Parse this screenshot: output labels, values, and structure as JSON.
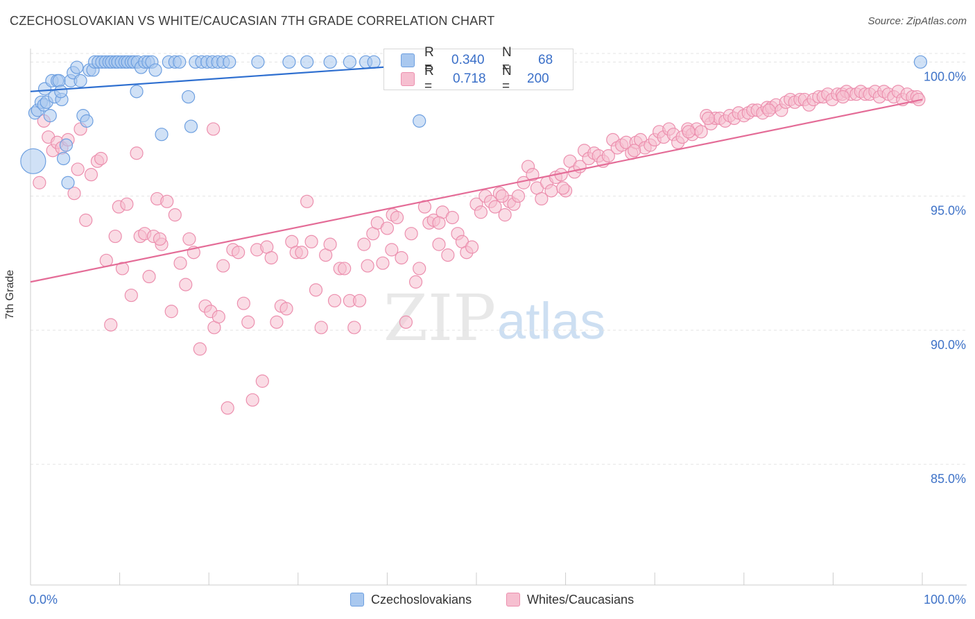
{
  "title": "CZECHOSLOVAKIAN VS WHITE/CAUCASIAN 7TH GRADE CORRELATION CHART",
  "source": "Source: ZipAtlas.com",
  "watermark": {
    "zip": "ZIP",
    "atlas": "atlas"
  },
  "colors": {
    "blue_fill": "#a9c8ef",
    "blue_stroke": "#6d9fe0",
    "blue_line": "#2e6fd0",
    "pink_fill": "#f6bfd0",
    "pink_stroke": "#ec8fae",
    "pink_line": "#e46c97",
    "tick_label": "#3f73c8",
    "grid": "#e3e3e3"
  },
  "stats": {
    "rows": [
      {
        "r_label": "R =",
        "r_value": "0.340",
        "n_label": "N =",
        "n_value": "68"
      },
      {
        "r_label": "R =",
        "r_value": "0.718",
        "n_label": "N =",
        "n_value": "200"
      }
    ]
  },
  "legend": [
    {
      "label": "Czechoslovakians"
    },
    {
      "label": "Whites/Caucasians"
    }
  ],
  "chart_data": {
    "type": "scatter",
    "title": "CZECHOSLOVAKIAN VS WHITE/CAUCASIAN 7TH GRADE CORRELATION CHART",
    "xlabel": "",
    "ylabel": "7th Grade",
    "xlim": [
      0,
      100
    ],
    "ylim": [
      80.5,
      100.5
    ],
    "x_tick_labels": [
      "0.0%",
      "100.0%"
    ],
    "y_ticks": [
      85,
      90,
      95,
      100
    ],
    "y_tick_labels": [
      "85.0%",
      "90.0%",
      "95.0%",
      "100.0%"
    ],
    "grid": true,
    "legend_position": "bottom",
    "series": [
      {
        "name": "Czechoslovakians",
        "color": "#a9c8ef",
        "trend": {
          "x": [
            0,
            48
          ],
          "y": [
            98.9,
            100.0
          ]
        },
        "points": [
          [
            0.3,
            96.3
          ],
          [
            0.5,
            98.1
          ],
          [
            0.8,
            98.2
          ],
          [
            1.2,
            98.5
          ],
          [
            1.5,
            98.4
          ],
          [
            1.6,
            99.0
          ],
          [
            1.8,
            98.5
          ],
          [
            2.2,
            98.0
          ],
          [
            2.4,
            99.3
          ],
          [
            2.7,
            98.7
          ],
          [
            3.0,
            99.3
          ],
          [
            3.2,
            99.3
          ],
          [
            3.5,
            98.6
          ],
          [
            3.7,
            96.4
          ],
          [
            4.0,
            96.9
          ],
          [
            4.5,
            99.3
          ],
          [
            4.8,
            99.6
          ],
          [
            5.2,
            99.8
          ],
          [
            5.6,
            99.3
          ],
          [
            5.9,
            98.0
          ],
          [
            6.3,
            97.8
          ],
          [
            6.6,
            99.7
          ],
          [
            7.0,
            99.7
          ],
          [
            7.2,
            100.0
          ],
          [
            7.6,
            100.0
          ],
          [
            8.0,
            100.0
          ],
          [
            8.4,
            100.0
          ],
          [
            8.8,
            100.0
          ],
          [
            9.1,
            100.0
          ],
          [
            9.5,
            100.0
          ],
          [
            9.8,
            100.0
          ],
          [
            10.2,
            100.0
          ],
          [
            10.6,
            100.0
          ],
          [
            10.9,
            100.0
          ],
          [
            11.3,
            100.0
          ],
          [
            11.6,
            100.0
          ],
          [
            12.0,
            100.0
          ],
          [
            12.4,
            99.8
          ],
          [
            12.8,
            100.0
          ],
          [
            13.2,
            100.0
          ],
          [
            13.6,
            100.0
          ],
          [
            14.0,
            99.7
          ],
          [
            14.7,
            97.3
          ],
          [
            15.5,
            100.0
          ],
          [
            16.2,
            100.0
          ],
          [
            16.7,
            100.0
          ],
          [
            17.7,
            98.7
          ],
          [
            18.0,
            97.6
          ],
          [
            18.5,
            100.0
          ],
          [
            19.2,
            100.0
          ],
          [
            19.8,
            100.0
          ],
          [
            20.4,
            100.0
          ],
          [
            21.0,
            100.0
          ],
          [
            21.6,
            100.0
          ],
          [
            22.3,
            100.0
          ],
          [
            25.5,
            100.0
          ],
          [
            29.0,
            100.0
          ],
          [
            31.0,
            100.0
          ],
          [
            33.6,
            100.0
          ],
          [
            35.8,
            100.0
          ],
          [
            37.6,
            100.0
          ],
          [
            38.5,
            100.0
          ],
          [
            40.5,
            100.0
          ],
          [
            43.6,
            97.8
          ],
          [
            11.9,
            98.9
          ],
          [
            4.2,
            95.5
          ],
          [
            3.4,
            98.9
          ],
          [
            99.8,
            100.0
          ]
        ]
      },
      {
        "name": "Whites/Caucasians",
        "color": "#f6bfd0",
        "trend": {
          "x": [
            0,
            100
          ],
          "y": [
            91.8,
            98.6
          ]
        },
        "points": [
          [
            1.0,
            95.5
          ],
          [
            1.5,
            97.8
          ],
          [
            2.0,
            97.2
          ],
          [
            2.5,
            96.7
          ],
          [
            3.0,
            97.0
          ],
          [
            3.5,
            96.8
          ],
          [
            4.2,
            97.1
          ],
          [
            4.9,
            95.1
          ],
          [
            5.3,
            96.0
          ],
          [
            5.6,
            97.5
          ],
          [
            6.2,
            94.1
          ],
          [
            6.8,
            95.8
          ],
          [
            7.5,
            96.3
          ],
          [
            7.9,
            96.4
          ],
          [
            8.5,
            92.6
          ],
          [
            9.0,
            90.2
          ],
          [
            9.5,
            93.5
          ],
          [
            9.9,
            94.6
          ],
          [
            10.3,
            92.3
          ],
          [
            10.8,
            94.7
          ],
          [
            11.3,
            91.3
          ],
          [
            11.9,
            96.6
          ],
          [
            12.3,
            93.5
          ],
          [
            12.8,
            93.6
          ],
          [
            13.3,
            92.0
          ],
          [
            13.8,
            93.5
          ],
          [
            14.2,
            94.9
          ],
          [
            14.7,
            93.2
          ],
          [
            15.3,
            94.8
          ],
          [
            15.8,
            90.7
          ],
          [
            16.2,
            94.3
          ],
          [
            16.8,
            92.5
          ],
          [
            17.4,
            91.7
          ],
          [
            17.8,
            93.4
          ],
          [
            18.3,
            92.9
          ],
          [
            19.0,
            89.3
          ],
          [
            19.6,
            90.9
          ],
          [
            20.2,
            90.7
          ],
          [
            20.6,
            90.1
          ],
          [
            21.1,
            90.5
          ],
          [
            21.6,
            92.4
          ],
          [
            22.1,
            87.1
          ],
          [
            22.7,
            93.0
          ],
          [
            23.3,
            92.9
          ],
          [
            23.9,
            91.0
          ],
          [
            24.4,
            90.3
          ],
          [
            24.9,
            87.4
          ],
          [
            25.4,
            93.0
          ],
          [
            26.0,
            88.1
          ],
          [
            26.5,
            93.1
          ],
          [
            27.0,
            92.7
          ],
          [
            27.6,
            90.3
          ],
          [
            28.1,
            90.9
          ],
          [
            28.7,
            90.8
          ],
          [
            29.3,
            93.3
          ],
          [
            29.8,
            92.9
          ],
          [
            30.4,
            92.9
          ],
          [
            31.0,
            94.8
          ],
          [
            31.5,
            93.3
          ],
          [
            32.0,
            91.5
          ],
          [
            32.6,
            90.1
          ],
          [
            33.1,
            92.8
          ],
          [
            33.6,
            93.2
          ],
          [
            34.1,
            91.1
          ],
          [
            34.7,
            92.3
          ],
          [
            35.2,
            92.3
          ],
          [
            35.8,
            91.1
          ],
          [
            36.3,
            90.1
          ],
          [
            36.9,
            91.1
          ],
          [
            37.4,
            93.2
          ],
          [
            37.8,
            92.4
          ],
          [
            38.4,
            93.6
          ],
          [
            38.9,
            94.0
          ],
          [
            39.5,
            92.5
          ],
          [
            40.0,
            93.8
          ],
          [
            40.6,
            94.3
          ],
          [
            41.1,
            94.2
          ],
          [
            41.6,
            92.7
          ],
          [
            42.1,
            90.3
          ],
          [
            42.7,
            93.6
          ],
          [
            43.2,
            91.8
          ],
          [
            43.6,
            92.3
          ],
          [
            44.2,
            94.6
          ],
          [
            44.7,
            94.0
          ],
          [
            45.2,
            94.1
          ],
          [
            45.8,
            93.2
          ],
          [
            46.2,
            94.4
          ],
          [
            46.8,
            92.8
          ],
          [
            47.3,
            94.2
          ],
          [
            47.9,
            93.6
          ],
          [
            48.4,
            93.3
          ],
          [
            48.9,
            92.9
          ],
          [
            49.5,
            93.1
          ],
          [
            50.0,
            94.7
          ],
          [
            50.5,
            94.4
          ],
          [
            51.0,
            95.0
          ],
          [
            51.6,
            94.8
          ],
          [
            52.1,
            94.6
          ],
          [
            52.6,
            95.1
          ],
          [
            53.2,
            94.3
          ],
          [
            53.7,
            94.8
          ],
          [
            54.2,
            94.7
          ],
          [
            54.7,
            95.0
          ],
          [
            55.3,
            95.5
          ],
          [
            55.8,
            96.1
          ],
          [
            56.3,
            95.8
          ],
          [
            56.8,
            95.3
          ],
          [
            57.3,
            94.9
          ],
          [
            57.9,
            95.5
          ],
          [
            58.4,
            95.2
          ],
          [
            58.9,
            95.7
          ],
          [
            59.5,
            95.8
          ],
          [
            60.0,
            95.2
          ],
          [
            60.5,
            96.3
          ],
          [
            61.0,
            95.9
          ],
          [
            61.6,
            96.1
          ],
          [
            62.1,
            96.7
          ],
          [
            62.6,
            96.4
          ],
          [
            63.2,
            96.6
          ],
          [
            63.7,
            96.5
          ],
          [
            64.2,
            96.3
          ],
          [
            64.8,
            96.5
          ],
          [
            65.3,
            97.1
          ],
          [
            65.8,
            96.8
          ],
          [
            66.3,
            96.9
          ],
          [
            66.8,
            97.0
          ],
          [
            67.4,
            96.6
          ],
          [
            67.9,
            97.0
          ],
          [
            68.4,
            97.1
          ],
          [
            68.9,
            96.8
          ],
          [
            69.5,
            96.9
          ],
          [
            70.0,
            97.1
          ],
          [
            70.5,
            97.4
          ],
          [
            71.0,
            97.2
          ],
          [
            71.6,
            97.5
          ],
          [
            72.1,
            97.3
          ],
          [
            72.6,
            97.0
          ],
          [
            73.1,
            97.2
          ],
          [
            73.7,
            97.5
          ],
          [
            74.2,
            97.3
          ],
          [
            74.7,
            97.5
          ],
          [
            75.2,
            97.4
          ],
          [
            75.8,
            98.0
          ],
          [
            76.3,
            97.7
          ],
          [
            76.8,
            97.9
          ],
          [
            77.3,
            97.9
          ],
          [
            77.9,
            97.8
          ],
          [
            78.4,
            98.0
          ],
          [
            78.9,
            97.9
          ],
          [
            79.4,
            98.1
          ],
          [
            80.0,
            98.0
          ],
          [
            80.5,
            98.1
          ],
          [
            81.0,
            98.2
          ],
          [
            81.5,
            98.2
          ],
          [
            82.1,
            98.1
          ],
          [
            82.6,
            98.3
          ],
          [
            83.1,
            98.3
          ],
          [
            83.6,
            98.4
          ],
          [
            84.2,
            98.2
          ],
          [
            84.7,
            98.5
          ],
          [
            85.2,
            98.6
          ],
          [
            85.7,
            98.5
          ],
          [
            86.3,
            98.6
          ],
          [
            86.8,
            98.6
          ],
          [
            87.3,
            98.4
          ],
          [
            87.8,
            98.6
          ],
          [
            88.4,
            98.7
          ],
          [
            88.9,
            98.7
          ],
          [
            89.4,
            98.8
          ],
          [
            89.9,
            98.6
          ],
          [
            90.5,
            98.8
          ],
          [
            91.0,
            98.8
          ],
          [
            91.5,
            98.9
          ],
          [
            92.0,
            98.8
          ],
          [
            92.6,
            98.8
          ],
          [
            93.1,
            98.9
          ],
          [
            93.6,
            98.8
          ],
          [
            94.1,
            98.8
          ],
          [
            94.7,
            98.9
          ],
          [
            95.2,
            98.7
          ],
          [
            95.7,
            98.9
          ],
          [
            96.2,
            98.8
          ],
          [
            96.8,
            98.7
          ],
          [
            97.3,
            98.9
          ],
          [
            97.8,
            98.6
          ],
          [
            98.3,
            98.8
          ],
          [
            98.9,
            98.7
          ],
          [
            99.4,
            98.7
          ],
          [
            99.6,
            98.6
          ],
          [
            20.5,
            97.5
          ],
          [
            14.5,
            93.4
          ],
          [
            40.5,
            93.0
          ],
          [
            59.7,
            95.3
          ],
          [
            67.7,
            96.7
          ],
          [
            73.8,
            97.4
          ],
          [
            82.8,
            98.2
          ],
          [
            91.1,
            98.7
          ],
          [
            45.8,
            94.0
          ],
          [
            52.9,
            95.0
          ],
          [
            76.0,
            97.9
          ]
        ]
      }
    ]
  }
}
